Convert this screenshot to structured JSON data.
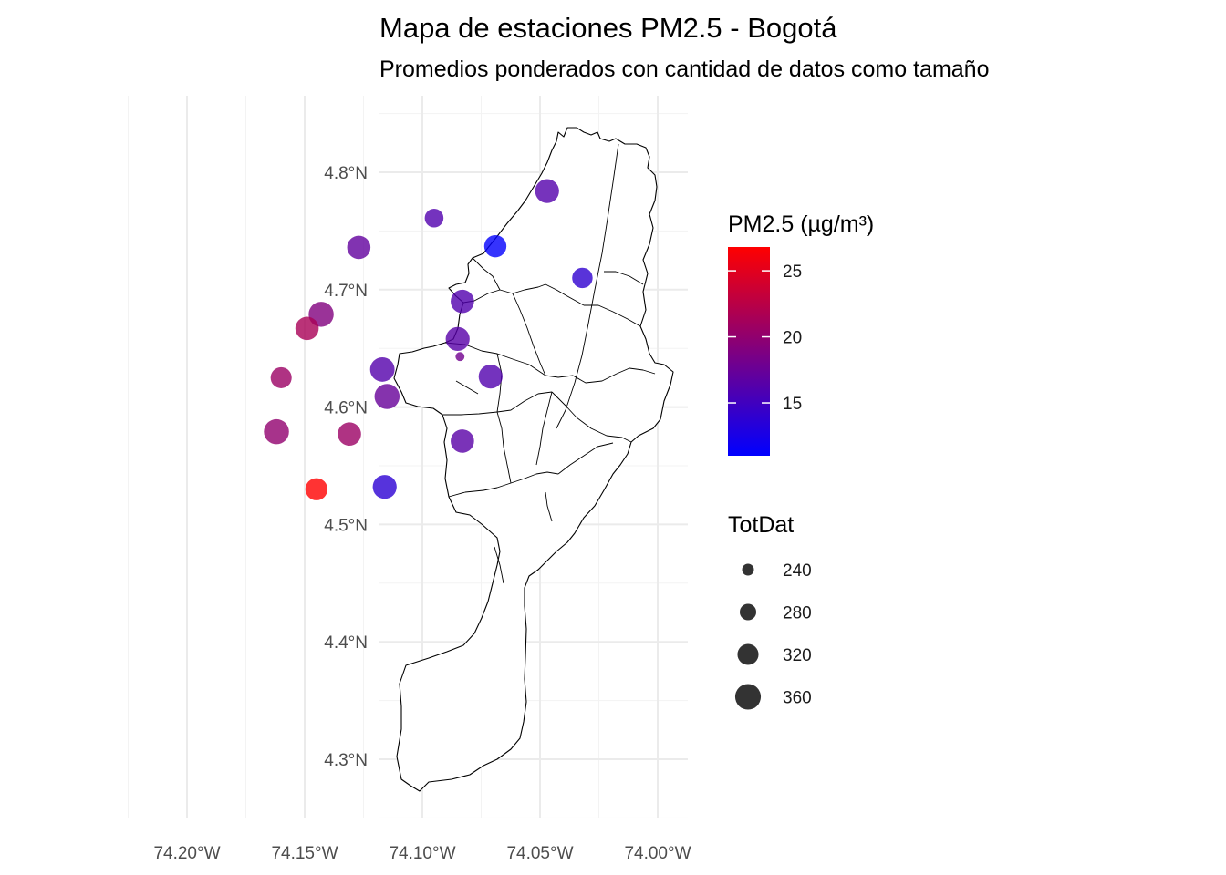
{
  "title": "Mapa de estaciones PM2.5 - Bogotá",
  "subtitle": "Promedios ponderados con cantidad de datos como tamaño",
  "chart_data": {
    "type": "map-scatter",
    "xlim": [
      -74.225,
      -73.99
    ],
    "ylim": [
      4.25,
      4.86
    ],
    "x_ticks": [
      {
        "value": -74.2,
        "label": "74.20°W"
      },
      {
        "value": -74.15,
        "label": "74.15°W"
      },
      {
        "value": -74.1,
        "label": "74.10°W"
      },
      {
        "value": -74.05,
        "label": "74.05°W"
      },
      {
        "value": -74.0,
        "label": "74.00°W"
      }
    ],
    "y_ticks": [
      {
        "value": 4.8,
        "label": "4.8°N"
      },
      {
        "value": 4.7,
        "label": "4.7°N"
      },
      {
        "value": 4.6,
        "label": "4.6°N"
      },
      {
        "value": 4.5,
        "label": "4.5°N"
      },
      {
        "value": 4.4,
        "label": "4.4°N"
      },
      {
        "value": 4.3,
        "label": "4.3°N"
      }
    ],
    "grid": true,
    "color_legend": {
      "title": "PM2.5 (µg/m³)",
      "range": [
        11,
        26.8
      ],
      "low_color": "#0000ff",
      "high_color": "#ff0000",
      "ticks": [
        25,
        20,
        15
      ]
    },
    "size_legend": {
      "title": "TotDat",
      "values": [
        240,
        280,
        320,
        360
      ],
      "labels": [
        "240",
        "280",
        "320",
        "360"
      ]
    },
    "stations": [
      {
        "lon": -74.047,
        "lat": 4.784,
        "pm25": 16.2,
        "totdat": 345
      },
      {
        "lon": -74.095,
        "lat": 4.761,
        "pm25": 16.0,
        "totdat": 300
      },
      {
        "lon": -74.069,
        "lat": 4.737,
        "pm25": 11.2,
        "totdat": 330
      },
      {
        "lon": -74.127,
        "lat": 4.736,
        "pm25": 17.0,
        "totdat": 340
      },
      {
        "lon": -74.032,
        "lat": 4.71,
        "pm25": 14.0,
        "totdat": 315
      },
      {
        "lon": -74.083,
        "lat": 4.69,
        "pm25": 16.0,
        "totdat": 340
      },
      {
        "lon": -74.143,
        "lat": 4.679,
        "pm25": 19.0,
        "totdat": 355
      },
      {
        "lon": -74.149,
        "lat": 4.667,
        "pm25": 21.5,
        "totdat": 340
      },
      {
        "lon": -74.085,
        "lat": 4.658,
        "pm25": 16.4,
        "totdat": 345
      },
      {
        "lon": -74.084,
        "lat": 4.643,
        "pm25": 18.0,
        "totdat": 215
      },
      {
        "lon": -74.117,
        "lat": 4.632,
        "pm25": 16.2,
        "totdat": 350
      },
      {
        "lon": -74.16,
        "lat": 4.625,
        "pm25": 20.6,
        "totdat": 320
      },
      {
        "lon": -74.071,
        "lat": 4.626,
        "pm25": 16.0,
        "totdat": 345
      },
      {
        "lon": -74.115,
        "lat": 4.609,
        "pm25": 17.4,
        "totdat": 355
      },
      {
        "lon": -74.162,
        "lat": 4.579,
        "pm25": 20.0,
        "totdat": 355
      },
      {
        "lon": -74.131,
        "lat": 4.577,
        "pm25": 20.6,
        "totdat": 340
      },
      {
        "lon": -74.083,
        "lat": 4.571,
        "pm25": 16.5,
        "totdat": 340
      },
      {
        "lon": -74.145,
        "lat": 4.53,
        "pm25": 26.8,
        "totdat": 330
      },
      {
        "lon": -74.116,
        "lat": 4.532,
        "pm25": 13.7,
        "totdat": 345
      }
    ]
  }
}
